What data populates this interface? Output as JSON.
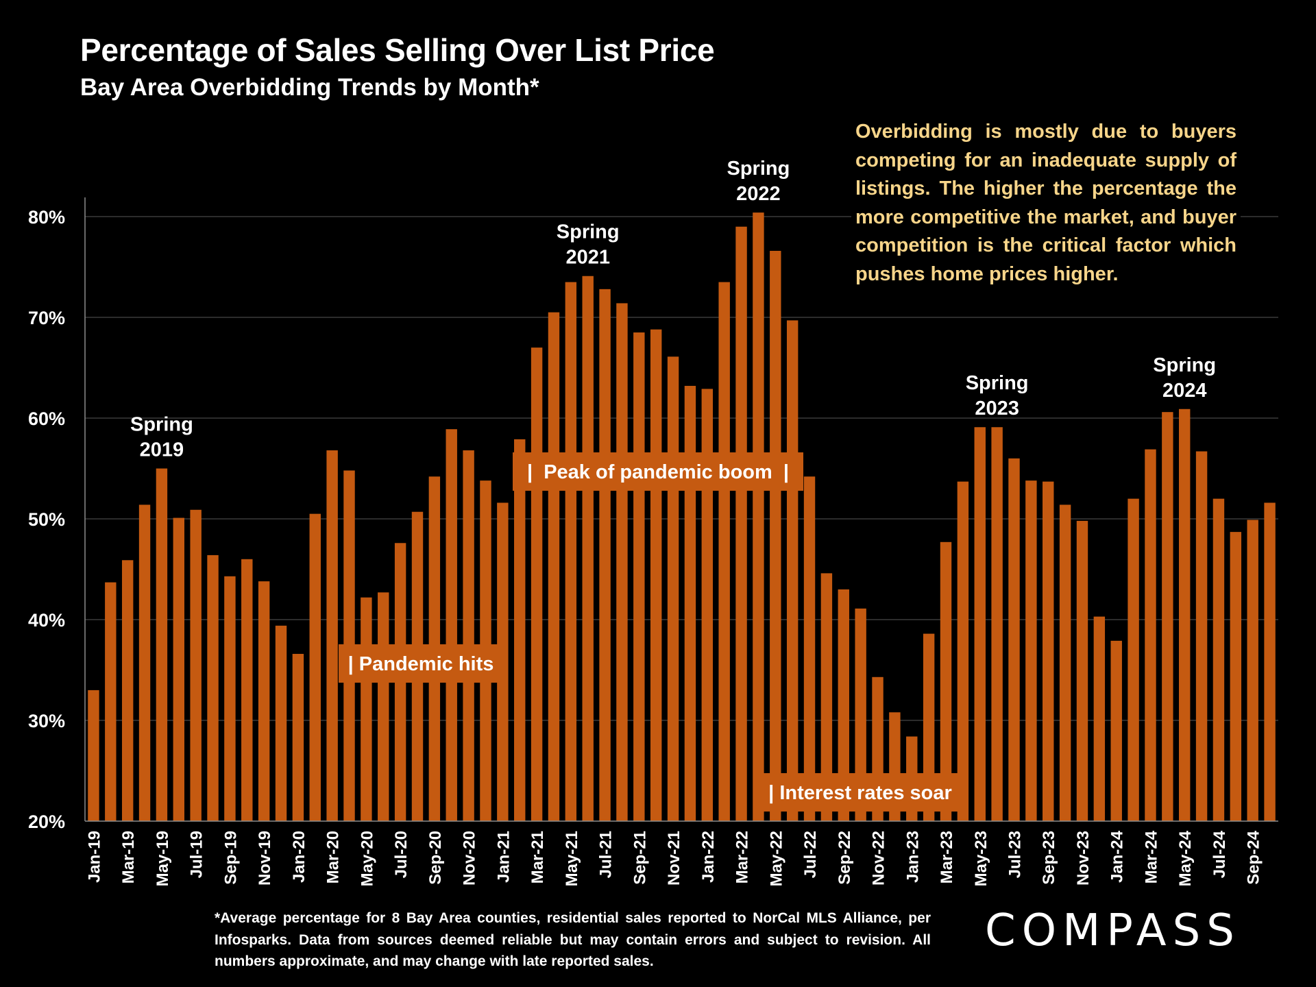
{
  "title": "Percentage of Sales Selling Over List Price",
  "subtitle": "Bay Area Overbidding Trends by Month*",
  "commentary": "Overbidding is mostly due to buyers competing for an inadequate supply of listings. The higher the percentage the more competitive the market, and buyer competition is the critical factor which pushes home prices higher.",
  "footnote": "*Average percentage for 8 Bay Area counties, residential sales reported to NorCal MLS Alliance, per Infosparks. Data from sources deemed reliable but may contain errors and subject to revision. All numbers approximate, and may change with late reported sales.",
  "logo_text": "COMPASS",
  "colors": {
    "bar": "#c55a11",
    "background": "#000000",
    "commentary": "#f7d58a",
    "gridline": "#595959"
  },
  "chart_data": {
    "type": "bar",
    "ylim": [
      20,
      80
    ],
    "yticks": [
      "20%",
      "30%",
      "40%",
      "50%",
      "60%",
      "70%",
      "80%"
    ],
    "grid": true,
    "categories": [
      "Jan-19",
      "Feb-19",
      "Mar-19",
      "Apr-19",
      "May-19",
      "Jun-19",
      "Jul-19",
      "Aug-19",
      "Sep-19",
      "Oct-19",
      "Nov-19",
      "Dec-19",
      "Jan-20",
      "Feb-20",
      "Mar-20",
      "Apr-20",
      "May-20",
      "Jun-20",
      "Jul-20",
      "Aug-20",
      "Sep-20",
      "Oct-20",
      "Nov-20",
      "Dec-20",
      "Jan-21",
      "Feb-21",
      "Mar-21",
      "Apr-21",
      "May-21",
      "Jun-21",
      "Jul-21",
      "Aug-21",
      "Sep-21",
      "Oct-21",
      "Nov-21",
      "Dec-21",
      "Jan-22",
      "Feb-22",
      "Mar-22",
      "Apr-22",
      "May-22",
      "Jun-22",
      "Jul-22",
      "Aug-22",
      "Sep-22",
      "Oct-22",
      "Nov-22",
      "Dec-22",
      "Jan-23",
      "Feb-23",
      "Mar-23",
      "Apr-23",
      "May-23",
      "Jun-23",
      "Jul-23",
      "Aug-23",
      "Sep-23",
      "Oct-23",
      "Nov-23",
      "Dec-23",
      "Jan-24",
      "Feb-24",
      "Mar-24",
      "Apr-24",
      "May-24",
      "Jun-24",
      "Jul-24",
      "Aug-24",
      "Sep-24",
      "Oct-24"
    ],
    "tick_labels": [
      "Jan-19",
      "Mar-19",
      "May-19",
      "Jul-19",
      "Sep-19",
      "Nov-19",
      "Jan-20",
      "Mar-20",
      "May-20",
      "Jul-20",
      "Sep-20",
      "Nov-20",
      "Jan-21",
      "Mar-21",
      "May-21",
      "Jul-21",
      "Sep-21",
      "Nov-21",
      "Jan-22",
      "Mar-22",
      "May-22",
      "Jul-22",
      "Sep-22",
      "Nov-22",
      "Jan-23",
      "Mar-23",
      "May-23",
      "Jul-23",
      "Sep-23",
      "Nov-23",
      "Jan-24",
      "Mar-24",
      "May-24",
      "Jul-24",
      "Sep-24"
    ],
    "values": [
      33.0,
      43.7,
      45.9,
      51.4,
      55.0,
      50.1,
      50.9,
      46.4,
      44.3,
      46.0,
      43.8,
      39.4,
      36.6,
      50.5,
      56.8,
      54.8,
      42.2,
      42.7,
      47.6,
      50.7,
      54.2,
      58.9,
      56.8,
      53.8,
      51.6,
      57.9,
      67.0,
      70.5,
      73.5,
      74.1,
      72.8,
      71.4,
      68.5,
      68.8,
      66.1,
      63.2,
      62.9,
      73.5,
      79.0,
      80.4,
      76.6,
      69.7,
      54.2,
      44.6,
      43.0,
      41.1,
      34.3,
      30.8,
      28.4,
      38.6,
      47.7,
      53.7,
      59.1,
      59.1,
      56.0,
      53.8,
      53.7,
      51.4,
      49.8,
      40.3,
      37.9,
      52.0,
      56.9,
      60.6,
      60.9,
      56.7,
      52.0,
      48.7,
      49.9,
      51.6
    ],
    "annotations": [
      {
        "line1": "Spring",
        "line2": "2019",
        "at": "May-19"
      },
      {
        "line1": "Spring",
        "line2": "2021",
        "at": "Jun-21"
      },
      {
        "line1": "Spring",
        "line2": "2022",
        "at": "Apr-22"
      },
      {
        "line1": "Spring",
        "line2": "2023",
        "at": "Jun-23"
      },
      {
        "line1": "Spring",
        "line2": "2024",
        "at": "May-24"
      }
    ],
    "events": [
      {
        "text": "| Pandemic hits"
      },
      {
        "text": "|  Peak of pandemic boom  |"
      },
      {
        "text": "| Interest rates soar"
      }
    ]
  }
}
